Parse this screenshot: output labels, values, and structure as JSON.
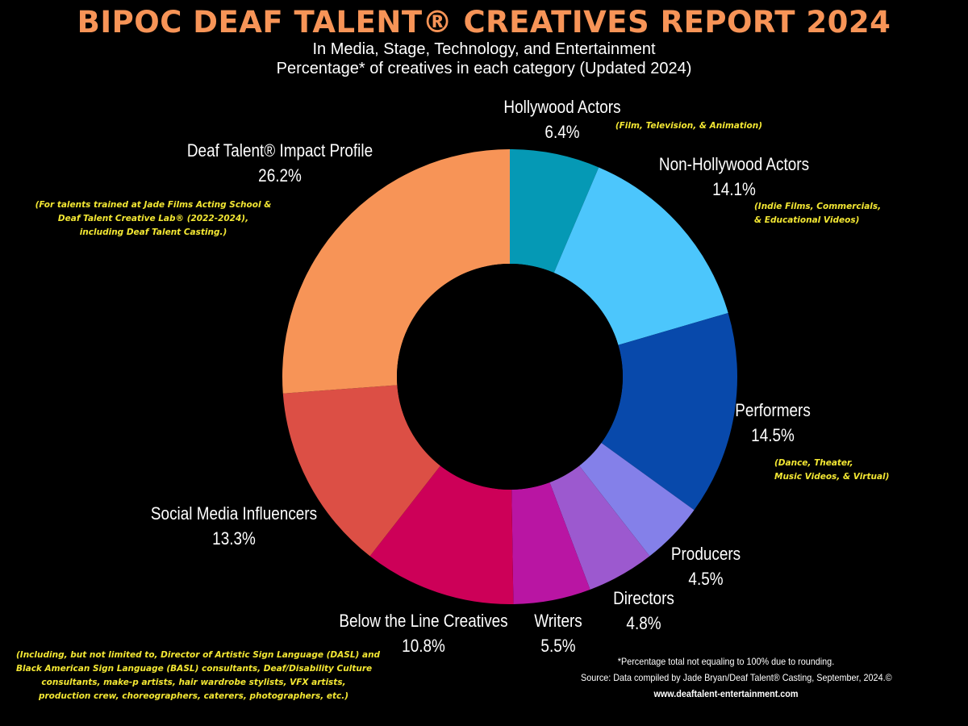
{
  "title": "BIPOC DEAF TALENT® CREATIVES REPORT 2024",
  "subtitle_line1": "In Media, Stage, Technology, and Entertainment",
  "subtitle_line2": "Percentage* of creatives in each category (Updated 2024)",
  "chart_data": {
    "type": "pie",
    "donut": true,
    "title": "BIPOC DEAF TALENT® CREATIVES REPORT 2024",
    "slices": [
      {
        "label": "Hollywood Actors",
        "value": 6.4,
        "display": "6.4%",
        "color": "#0599b5",
        "note": [
          "(Film, Television, & Animation)"
        ]
      },
      {
        "label": "Non-Hollywood Actors",
        "value": 14.1,
        "display": "14.1%",
        "color": "#4cc6fc",
        "note": [
          "(Indie Films, Commercials,",
          "& Educational Videos)"
        ]
      },
      {
        "label": "Performers",
        "value": 14.5,
        "display": "14.5%",
        "color": "#0849ab",
        "note": [
          "(Dance, Theater,",
          "Music Videos, & Virtual)"
        ]
      },
      {
        "label": "Producers",
        "value": 4.5,
        "display": "4.5%",
        "color": "#8480e9",
        "note": []
      },
      {
        "label": "Directors",
        "value": 4.8,
        "display": "4.8%",
        "color": "#9c59cf",
        "note": []
      },
      {
        "label": "Writers",
        "value": 5.5,
        "display": "5.5%",
        "color": "#b915a3",
        "note": []
      },
      {
        "label": "Below the Line Creatives",
        "value": 10.8,
        "display": "10.8%",
        "color": "#cd0058",
        "note": [
          "(Including, but not limited to, Director of Artistic Sign Language (DASL) and",
          "Black American Sign Language (BASL) consultants, Deaf/Disability Culture",
          "consultants, make-p artists, hair wardrobe stylists, VFX artists,",
          "production crew, choreographers, caterers, photographers, etc.)"
        ]
      },
      {
        "label": "Social Media Influencers",
        "value": 13.3,
        "display": "13.3%",
        "color": "#dc4f45",
        "note": []
      },
      {
        "label": "Deaf Talent® Impact Profile",
        "value": 26.2,
        "display": "26.2%",
        "color": "#f79457",
        "note": [
          "(For talents trained at Jade Films Acting School &",
          "Deaf Talent Creative Lab® (2022-2024),",
          "including Deaf Talent Casting.)"
        ]
      }
    ]
  },
  "footer": {
    "line1": "*Percentage total not equaling to 100% due to rounding.",
    "line2": "Source: Data compiled by Jade Bryan/Deaf Talent® Casting, September, 2024.©",
    "line3": "www.deaftalent-entertainment.com"
  }
}
